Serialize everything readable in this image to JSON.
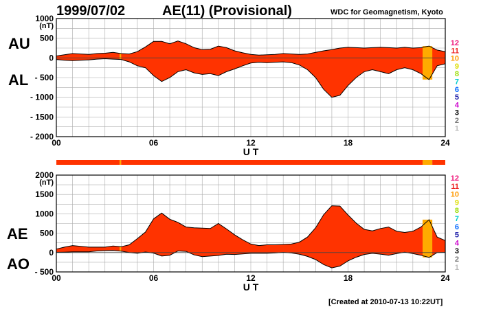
{
  "header": {
    "date": "1999/07/02",
    "title": "AE(11) (Provisional)",
    "institution": "WDC for Geomagnetism, Kyoto",
    "created": "[Created at 2010-07-13 10:22UT]"
  },
  "labels": {
    "top_upper": "AU",
    "top_lower": "AL",
    "bottom_upper": "AE",
    "bottom_lower": "AO"
  },
  "colors": {
    "fill": "#ff3300",
    "highlight": "#ffaa00",
    "outline": "#000000",
    "grid": "#aaaaaa"
  },
  "station_legend": [
    {
      "label": "12",
      "color": "#ee1177"
    },
    {
      "label": "11",
      "color": "#ee2222"
    },
    {
      "label": "10",
      "color": "#ff9900"
    },
    {
      "label": "9",
      "color": "#dddd00"
    },
    {
      "label": "8",
      "color": "#99dd00"
    },
    {
      "label": "7",
      "color": "#00cccc"
    },
    {
      "label": "6",
      "color": "#0066ff"
    },
    {
      "label": "5",
      "color": "#2222aa"
    },
    {
      "label": "4",
      "color": "#cc00cc"
    },
    {
      "label": "3",
      "color": "#000000"
    },
    {
      "label": "2",
      "color": "#777777"
    },
    {
      "label": "1",
      "color": "#bbbbbb"
    }
  ],
  "chart_data": [
    {
      "type": "area",
      "name": "au-al-panel",
      "xlabel": "U T",
      "ylabel": "(nT)",
      "xlim": [
        0,
        24
      ],
      "ylim": [
        -2000,
        1000
      ],
      "x_ticks": [
        0,
        6,
        12,
        18,
        24
      ],
      "x_tick_labels": [
        "00",
        "06",
        "12",
        "18",
        "24"
      ],
      "y_ticks": [
        1000,
        500,
        0,
        -500,
        -1000,
        -1500,
        -2000
      ],
      "y_tick_labels": [
        "1000",
        "500",
        "0",
        "- 500",
        "- 1000",
        "- 1500",
        "- 2000"
      ],
      "grid": true,
      "x": [
        0,
        0.5,
        1,
        1.5,
        2,
        2.5,
        3,
        3.5,
        4,
        4.5,
        5,
        5.5,
        6,
        6.5,
        7,
        7.5,
        8,
        8.5,
        9,
        9.5,
        10,
        10.5,
        11,
        11.5,
        12,
        12.5,
        13,
        13.5,
        14,
        14.5,
        15,
        15.5,
        16,
        16.5,
        17,
        17.5,
        18,
        18.5,
        19,
        19.5,
        20,
        20.5,
        21,
        21.5,
        22,
        22.5,
        23,
        23.5,
        24
      ],
      "series": [
        {
          "name": "AU",
          "values": [
            50,
            80,
            110,
            100,
            90,
            110,
            120,
            140,
            110,
            100,
            160,
            280,
            420,
            420,
            360,
            430,
            360,
            260,
            210,
            220,
            300,
            260,
            180,
            130,
            90,
            70,
            80,
            90,
            110,
            100,
            90,
            100,
            140,
            180,
            210,
            250,
            270,
            260,
            250,
            260,
            270,
            260,
            250,
            270,
            250,
            260,
            300,
            200,
            160
          ]
        },
        {
          "name": "AL",
          "values": [
            -40,
            -60,
            -70,
            -60,
            -50,
            -30,
            -20,
            -30,
            -40,
            -100,
            -200,
            -250,
            -450,
            -600,
            -500,
            -350,
            -300,
            -380,
            -420,
            -400,
            -450,
            -350,
            -280,
            -200,
            -130,
            -110,
            -120,
            -110,
            -100,
            -120,
            -180,
            -300,
            -500,
            -800,
            -1000,
            -950,
            -700,
            -500,
            -350,
            -300,
            -350,
            -400,
            -300,
            -250,
            -300,
            -400,
            -550,
            -200,
            -150
          ]
        }
      ],
      "highlight_bands": [
        [
          3.9,
          4.0
        ],
        [
          22.6,
          23.2
        ]
      ]
    },
    {
      "type": "bar",
      "name": "coverage-bar",
      "xlim": [
        0,
        24
      ],
      "segments": [
        {
          "start": 0,
          "end": 3.9,
          "level": "11"
        },
        {
          "start": 3.9,
          "end": 4.0,
          "level": "10"
        },
        {
          "start": 4.0,
          "end": 22.6,
          "level": "11"
        },
        {
          "start": 22.6,
          "end": 23.2,
          "level": "10"
        },
        {
          "start": 23.2,
          "end": 24,
          "level": "11"
        }
      ]
    },
    {
      "type": "area",
      "name": "ae-ao-panel",
      "xlabel": "U T",
      "ylabel": "(nT)",
      "xlim": [
        0,
        24
      ],
      "ylim": [
        -500,
        2000
      ],
      "x_ticks": [
        0,
        6,
        12,
        18,
        24
      ],
      "x_tick_labels": [
        "00",
        "06",
        "12",
        "18",
        "24"
      ],
      "y_ticks": [
        2000,
        1500,
        1000,
        500,
        0,
        -500
      ],
      "y_tick_labels": [
        "2000",
        "1500",
        "1000",
        "500",
        "0",
        "- 500"
      ],
      "grid": true,
      "x": [
        0,
        0.5,
        1,
        1.5,
        2,
        2.5,
        3,
        3.5,
        4,
        4.5,
        5,
        5.5,
        6,
        6.5,
        7,
        7.5,
        8,
        8.5,
        9,
        9.5,
        10,
        10.5,
        11,
        11.5,
        12,
        12.5,
        13,
        13.5,
        14,
        14.5,
        15,
        15.5,
        16,
        16.5,
        17,
        17.5,
        18,
        18.5,
        19,
        19.5,
        20,
        20.5,
        21,
        21.5,
        22,
        22.5,
        23,
        23.5,
        24
      ],
      "series": [
        {
          "name": "AE",
          "values": [
            90,
            140,
            180,
            160,
            140,
            140,
            140,
            170,
            150,
            200,
            360,
            530,
            870,
            1020,
            860,
            780,
            660,
            640,
            630,
            620,
            750,
            610,
            460,
            330,
            220,
            180,
            200,
            200,
            210,
            220,
            270,
            400,
            640,
            980,
            1210,
            1200,
            970,
            760,
            600,
            560,
            620,
            660,
            550,
            520,
            550,
            660,
            850,
            400,
            310
          ]
        },
        {
          "name": "AO",
          "values": [
            5,
            10,
            20,
            20,
            20,
            40,
            50,
            55,
            35,
            0,
            -20,
            15,
            -15,
            -90,
            -70,
            40,
            30,
            -60,
            -105,
            -90,
            -75,
            -45,
            -50,
            -35,
            -20,
            -20,
            -20,
            -10,
            5,
            -10,
            -45,
            -100,
            -180,
            -310,
            -395,
            -350,
            -215,
            -120,
            -50,
            -20,
            -40,
            -70,
            -25,
            10,
            -25,
            -70,
            -125,
            0,
            5
          ]
        }
      ],
      "highlight_bands": [
        [
          3.9,
          4.0
        ],
        [
          22.6,
          23.2
        ]
      ]
    }
  ]
}
